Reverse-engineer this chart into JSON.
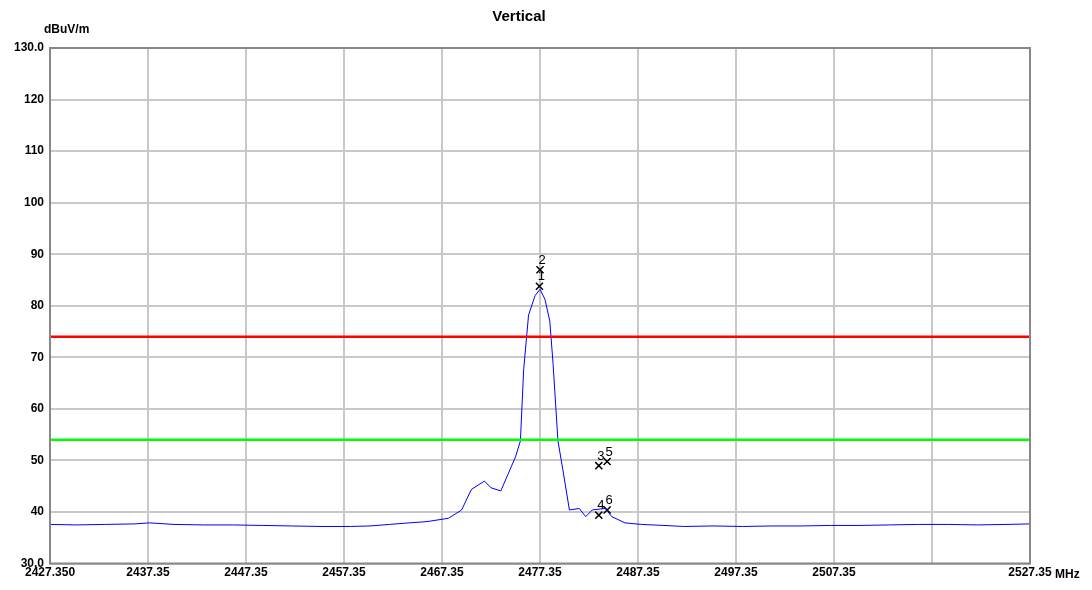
{
  "chart_data": {
    "type": "line",
    "title": "Vertical",
    "xlabel": "MHz",
    "ylabel": "dBuV/m",
    "xlim": [
      2427.35,
      2527.35
    ],
    "xticks": [
      {
        "value": 2427.35,
        "label": "2427.350"
      },
      2437.35,
      2447.35,
      2457.35,
      2467.35,
      2477.35,
      2487.35,
      2497.35,
      2507.35,
      {
        "value": 2517.35,
        "label": null
      },
      2527.35
    ],
    "ylim": [
      30,
      130
    ],
    "yticks": [
      {
        "value": 30,
        "label": "30.0"
      },
      40,
      50,
      60,
      70,
      80,
      90,
      100,
      110,
      120,
      {
        "value": 130,
        "label": "130.0"
      }
    ],
    "grid": true,
    "legend": false,
    "series": [
      {
        "color": "#0000ff",
        "marker": "none",
        "line_style": "solid",
        "x": [
          2427.35,
          2430,
          2433,
          2436,
          2437.5,
          2440,
          2443,
          2446,
          2449,
          2452,
          2455,
          2458,
          2460,
          2462,
          2464,
          2465.5,
          2466.02,
          2468.02,
          2469.35,
          2470.35,
          2471.68,
          2472.35,
          2473.35,
          2474.85,
          2475.35,
          2475.68,
          2476.18,
          2476.85,
          2477.35,
          2477.85,
          2478.35,
          2478.68,
          2479.18,
          2479.68,
          2480.35,
          2481.35,
          2482.02,
          2482.68,
          2484.02,
          2484.68,
          2486.02,
          2487.68,
          2490,
          2492.02,
          2495,
          2498,
          2501,
          2504,
          2507,
          2510,
          2513,
          2516,
          2519,
          2522,
          2525,
          2527.35
        ],
        "values": [
          37.6,
          37.5,
          37.6,
          37.7,
          37.9,
          37.6,
          37.5,
          37.5,
          37.4,
          37.3,
          37.2,
          37.2,
          37.3,
          37.6,
          37.9,
          38.1,
          38.2,
          38.8,
          40.4,
          44.4,
          46.0,
          44.7,
          44.1,
          50.7,
          53.8,
          67.6,
          78.2,
          82.0,
          83.2,
          81.3,
          77.0,
          68.8,
          53.8,
          48.2,
          40.4,
          40.7,
          39.1,
          40.4,
          40.7,
          39.1,
          37.9,
          37.6,
          37.4,
          37.2,
          37.3,
          37.2,
          37.3,
          37.3,
          37.4,
          37.4,
          37.5,
          37.6,
          37.6,
          37.5,
          37.6,
          37.7
        ]
      },
      {
        "type": "scatter",
        "color": "#000000",
        "marker": "cross",
        "x": [
          2477.29,
          2477.35,
          2483.35,
          2483.35,
          2484.2,
          2484.2
        ],
        "values": [
          83.8,
          87.0,
          49.0,
          39.4,
          49.8,
          40.4
        ]
      }
    ],
    "ref_lines": [
      {
        "axis": "y",
        "value": 74,
        "color": "#ff0000"
      },
      {
        "axis": "y",
        "value": 54,
        "color": "#00ff00"
      }
    ],
    "annotations": [
      {
        "text": "1",
        "x": 2477.29,
        "y": 83.8
      },
      {
        "text": "2",
        "x": 2477.35,
        "y": 87.0
      },
      {
        "text": "3",
        "x": 2483.35,
        "y": 49.0
      },
      {
        "text": "4",
        "x": 2483.35,
        "y": 39.4
      },
      {
        "text": "5",
        "x": 2484.2,
        "y": 49.8
      },
      {
        "text": "6",
        "x": 2484.2,
        "y": 40.4
      }
    ]
  }
}
